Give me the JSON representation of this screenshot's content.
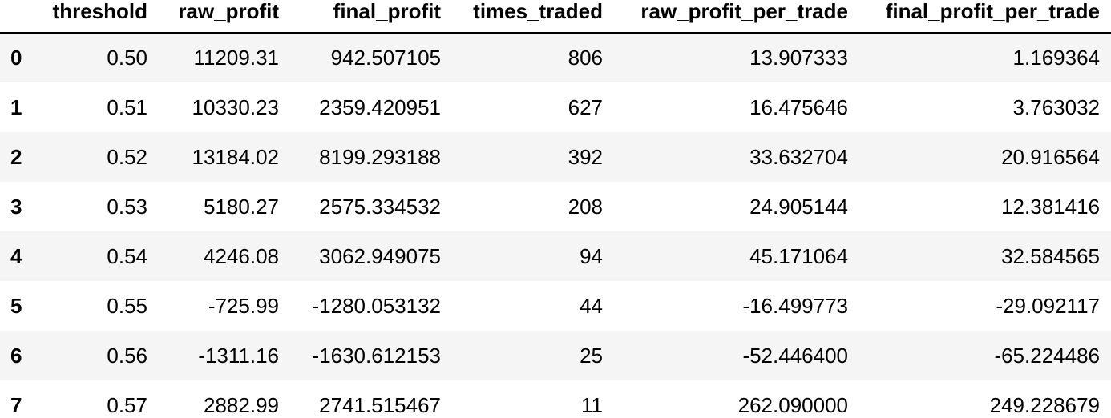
{
  "table": {
    "columns": [
      "",
      "threshold",
      "raw_profit",
      "final_profit",
      "times_traded",
      "raw_profit_per_trade",
      "final_profit_per_trade"
    ],
    "rows": [
      [
        "0",
        "0.50",
        "11209.31",
        "942.507105",
        "806",
        "13.907333",
        "1.169364"
      ],
      [
        "1",
        "0.51",
        "10330.23",
        "2359.420951",
        "627",
        "16.475646",
        "3.763032"
      ],
      [
        "2",
        "0.52",
        "13184.02",
        "8199.293188",
        "392",
        "33.632704",
        "20.916564"
      ],
      [
        "3",
        "0.53",
        "5180.27",
        "2575.334532",
        "208",
        "24.905144",
        "12.381416"
      ],
      [
        "4",
        "0.54",
        "4246.08",
        "3062.949075",
        "94",
        "45.171064",
        "32.584565"
      ],
      [
        "5",
        "0.55",
        "-725.99",
        "-1280.053132",
        "44",
        "-16.499773",
        "-29.092117"
      ],
      [
        "6",
        "0.56",
        "-1311.16",
        "-1630.612153",
        "25",
        "-52.446400",
        "-65.224486"
      ],
      [
        "7",
        "0.57",
        "2882.99",
        "2741.515467",
        "11",
        "262.090000",
        "249.228679"
      ]
    ]
  }
}
